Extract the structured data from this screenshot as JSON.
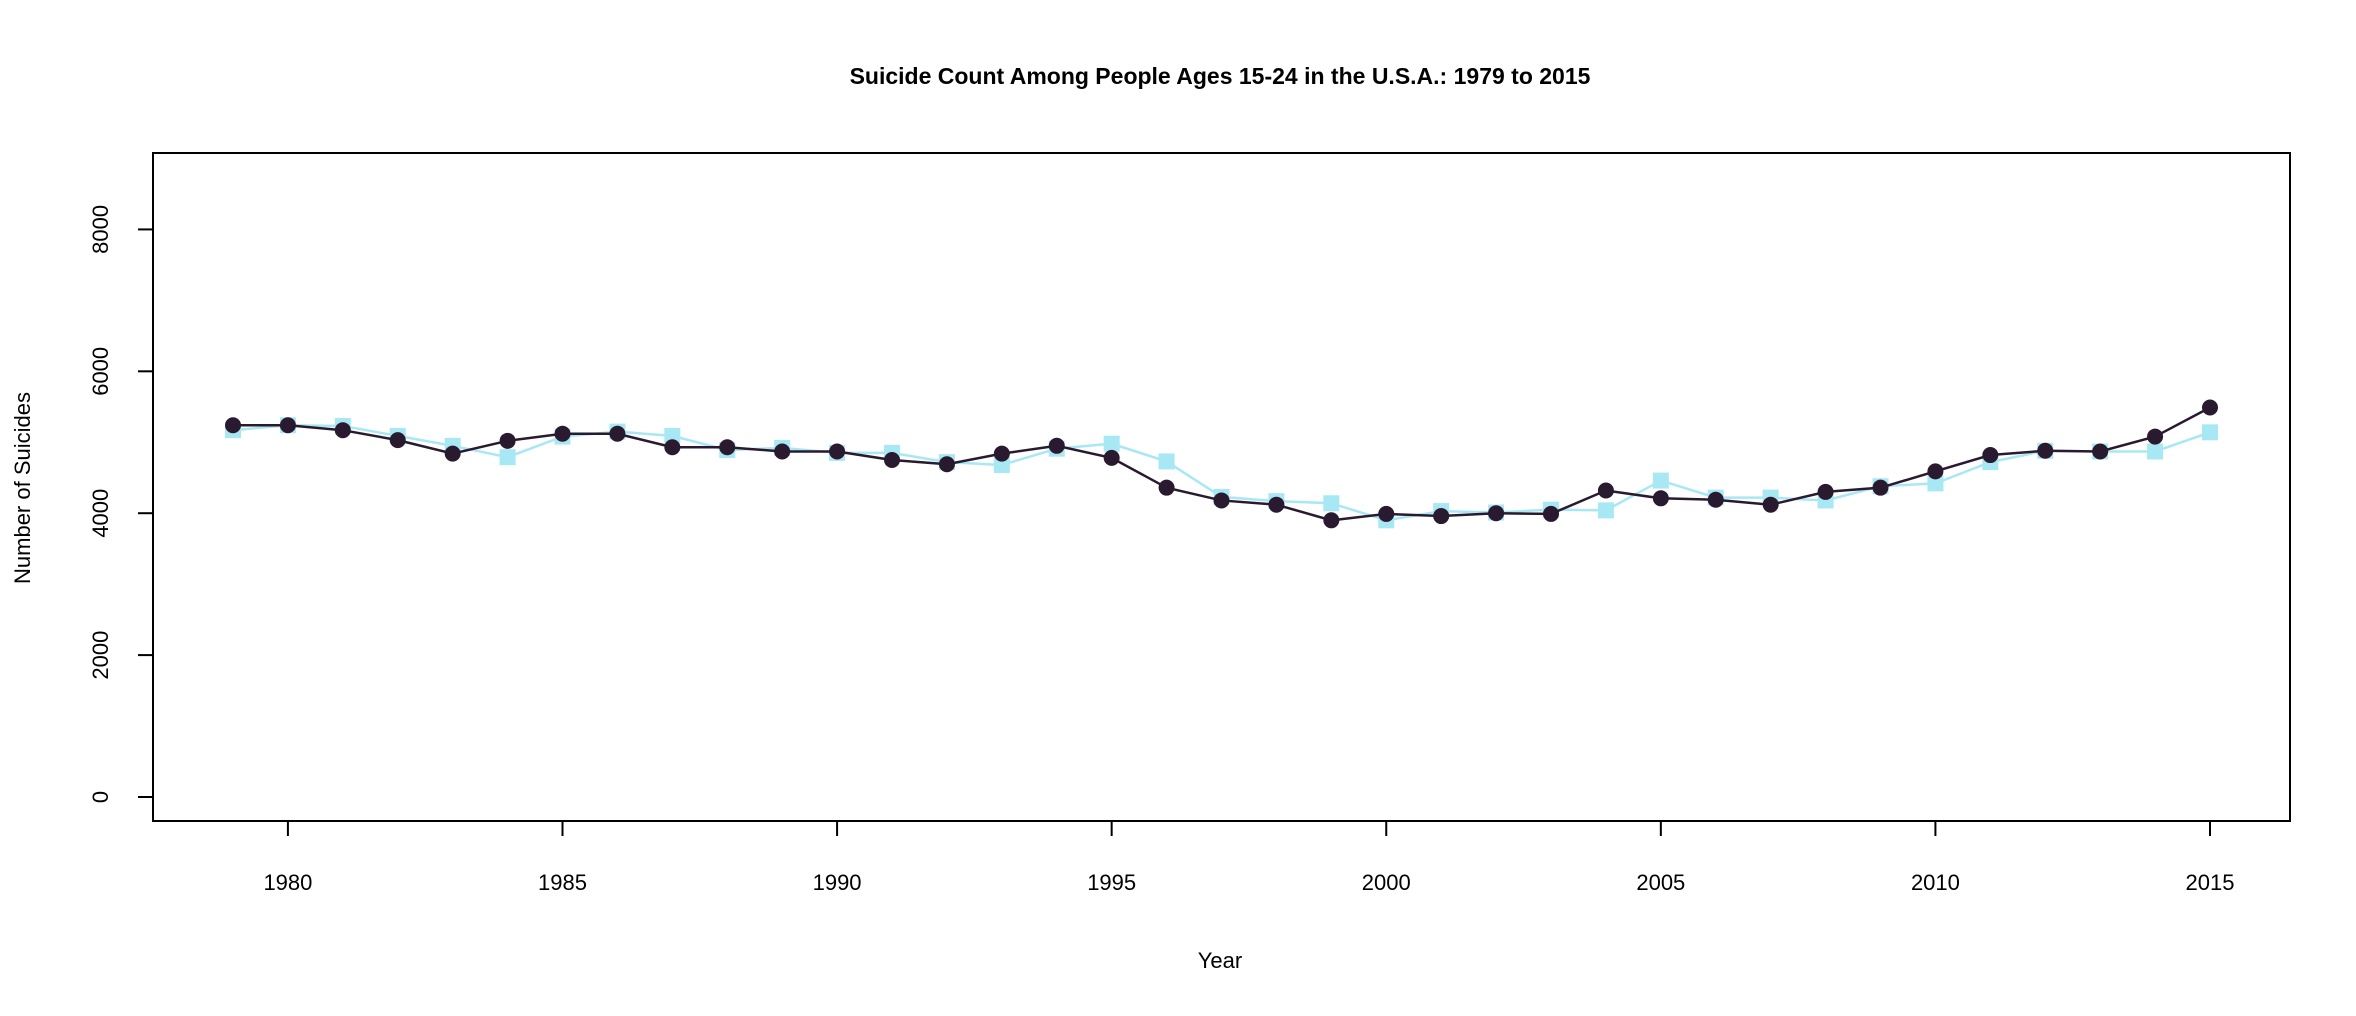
{
  "chart_data": {
    "type": "line",
    "title": "Suicide Count Among People Ages 15-24 in the U.S.A.: 1979 to 2015",
    "xlabel": "Year",
    "ylabel": "Number of Suicides",
    "xlim": [
      1979,
      2015
    ],
    "ylim": [
      0,
      9500
    ],
    "x_ticks": [
      1980,
      1985,
      1990,
      1995,
      2000,
      2005,
      2010,
      2015
    ],
    "y_ticks": [
      0,
      2000,
      4000,
      6000,
      8000
    ],
    "grid": false,
    "legend": null,
    "x": [
      1979,
      1980,
      1981,
      1982,
      1983,
      1984,
      1985,
      1986,
      1987,
      1988,
      1989,
      1990,
      1991,
      1992,
      1993,
      1994,
      1995,
      1996,
      1997,
      1998,
      1999,
      2000,
      2001,
      2002,
      2003,
      2004,
      2005,
      2006,
      2007,
      2008,
      2009,
      2010,
      2011,
      2012,
      2013,
      2014,
      2015
    ],
    "series": [
      {
        "color": "#a8e8f4",
        "marker": "square",
        "values": [
          5170,
          5240,
          5230,
          5090,
          4950,
          4790,
          5080,
          5150,
          5090,
          4890,
          4920,
          4850,
          4850,
          4720,
          4680,
          4910,
          4980,
          4730,
          4230,
          4170,
          4140,
          3900,
          4030,
          4010,
          4050,
          4040,
          4460,
          4220,
          4220,
          4180,
          4380,
          4420,
          4720,
          4880,
          4870,
          4870,
          5140
        ]
      },
      {
        "color": "#2a1a30",
        "marker": "circle",
        "values": [
          5240,
          5240,
          5170,
          5030,
          4840,
          5020,
          5120,
          5120,
          4930,
          4930,
          4870,
          4870,
          4750,
          4690,
          4840,
          4950,
          4780,
          4360,
          4180,
          4120,
          3900,
          3990,
          3960,
          4000,
          3990,
          4320,
          4210,
          4190,
          4120,
          4300,
          4360,
          4590,
          4820,
          4880,
          4870,
          5080,
          5490
        ]
      }
    ]
  }
}
